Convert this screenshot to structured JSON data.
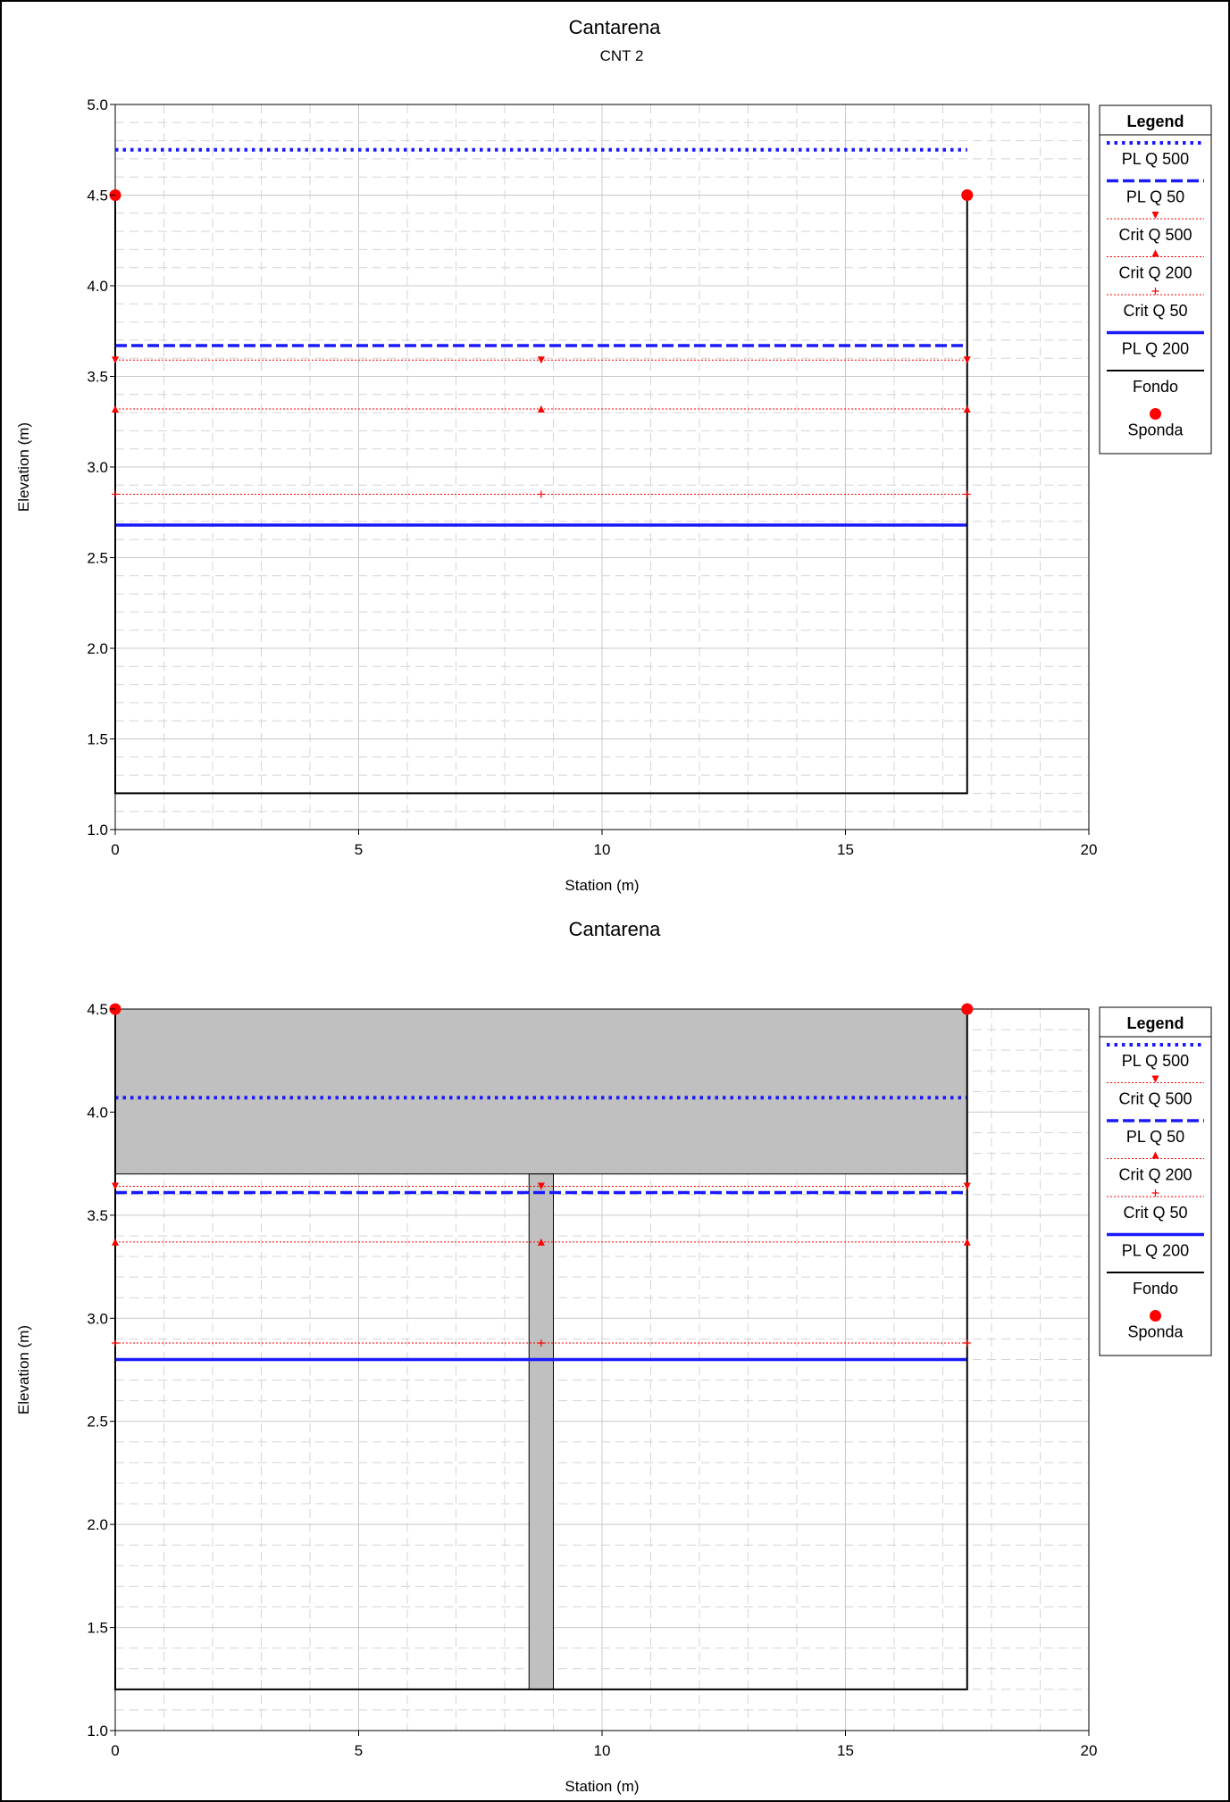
{
  "chart_data": [
    {
      "type": "line",
      "title": "Cantarena",
      "subtitle": "CNT 2",
      "xlabel": "Station (m)",
      "ylabel": "Elevation (m)",
      "xlim": [
        0,
        20
      ],
      "ylim": [
        1.0,
        5.0
      ],
      "xticks": [
        "0",
        "5",
        "10",
        "15",
        "20"
      ],
      "yticks": [
        "1.0",
        "1.5",
        "2.0",
        "2.5",
        "3.0",
        "3.5",
        "4.0",
        "4.5",
        "5.0"
      ],
      "grid": true,
      "legend_position": "right",
      "legend_title": "Legend",
      "legend": [
        "PL Q 500",
        "PL Q 50",
        "Crit Q 500",
        "Crit Q 200",
        "Crit Q 50",
        "PL Q 200",
        "Fondo",
        "Sponda"
      ],
      "series": [
        {
          "name": "PL Q 500",
          "kind": "wsel-dotted",
          "color": "#1a1aff",
          "x": [
            0,
            17.5
          ],
          "y": [
            4.75,
            4.75
          ]
        },
        {
          "name": "PL Q 50",
          "kind": "wsel-dashed",
          "color": "#1a1aff",
          "x": [
            0,
            17.5
          ],
          "y": [
            3.67,
            3.67
          ]
        },
        {
          "name": "Crit Q 500",
          "kind": "crit-down",
          "color": "#ff0000",
          "x": [
            0,
            8.75,
            17.5
          ],
          "y": [
            3.59,
            3.59,
            3.59
          ]
        },
        {
          "name": "Crit Q 200",
          "kind": "crit-up",
          "color": "#ff0000",
          "x": [
            0,
            8.75,
            17.5
          ],
          "y": [
            3.32,
            3.32,
            3.32
          ]
        },
        {
          "name": "Crit Q 50",
          "kind": "crit-plus",
          "color": "#ff0000",
          "x": [
            0,
            8.75,
            17.5
          ],
          "y": [
            2.85,
            2.85,
            2.85
          ]
        },
        {
          "name": "PL Q 200",
          "kind": "wsel-solid",
          "color": "#1a1aff",
          "x": [
            0,
            17.5
          ],
          "y": [
            2.68,
            2.68
          ]
        },
        {
          "name": "Fondo",
          "kind": "ground",
          "color": "#000000",
          "x": [
            0,
            0,
            17.5,
            17.5
          ],
          "y": [
            4.5,
            1.2,
            1.2,
            4.5
          ]
        },
        {
          "name": "Sponda",
          "kind": "bank",
          "color": "#ff0000",
          "x": [
            0,
            17.5
          ],
          "y": [
            4.5,
            4.5
          ]
        }
      ],
      "obstructions": []
    },
    {
      "type": "line",
      "title": "Cantarena",
      "subtitle": "",
      "xlabel": "Station (m)",
      "ylabel": "Elevation (m)",
      "xlim": [
        0,
        20
      ],
      "ylim": [
        1.0,
        4.5
      ],
      "xticks": [
        "0",
        "5",
        "10",
        "15",
        "20"
      ],
      "yticks": [
        "1.0",
        "1.5",
        "2.0",
        "2.5",
        "3.0",
        "3.5",
        "4.0",
        "4.5"
      ],
      "grid": true,
      "legend_position": "right",
      "legend_title": "Legend",
      "legend": [
        "PL Q 500",
        "Crit Q 500",
        "PL Q 50",
        "Crit Q 200",
        "Crit Q 50",
        "PL Q 200",
        "Fondo",
        "Sponda"
      ],
      "series": [
        {
          "name": "PL Q 500",
          "kind": "wsel-dotted",
          "color": "#1a1aff",
          "x": [
            0,
            17.5
          ],
          "y": [
            4.07,
            4.07
          ]
        },
        {
          "name": "Crit Q 500",
          "kind": "crit-down",
          "color": "#ff0000",
          "x": [
            0,
            8.75,
            17.5
          ],
          "y": [
            3.64,
            3.64,
            3.64
          ]
        },
        {
          "name": "PL Q 50",
          "kind": "wsel-dashed",
          "color": "#1a1aff",
          "x": [
            0,
            17.5
          ],
          "y": [
            3.61,
            3.61
          ]
        },
        {
          "name": "Crit Q 200",
          "kind": "crit-up",
          "color": "#ff0000",
          "x": [
            0,
            8.75,
            17.5
          ],
          "y": [
            3.37,
            3.37,
            3.37
          ]
        },
        {
          "name": "Crit Q 50",
          "kind": "crit-plus",
          "color": "#ff0000",
          "x": [
            0,
            8.75,
            17.5
          ],
          "y": [
            2.88,
            2.88,
            2.88
          ]
        },
        {
          "name": "PL Q 200",
          "kind": "wsel-solid",
          "color": "#1a1aff",
          "x": [
            0,
            17.5
          ],
          "y": [
            2.8,
            2.8
          ]
        },
        {
          "name": "Fondo",
          "kind": "ground",
          "color": "#000000",
          "x": [
            0,
            0,
            17.5,
            17.5
          ],
          "y": [
            4.5,
            1.2,
            1.2,
            4.5
          ]
        },
        {
          "name": "Sponda",
          "kind": "bank",
          "color": "#ff0000",
          "x": [
            0,
            17.5
          ],
          "y": [
            4.5,
            4.5
          ]
        }
      ],
      "obstructions": [
        {
          "name": "deck",
          "color": "#c0c0c0",
          "x0": 0,
          "x1": 17.5,
          "y0": 3.7,
          "y1": 4.5
        },
        {
          "name": "pier",
          "color": "#c0c0c0",
          "x0": 8.5,
          "x1": 9.0,
          "y0": 1.2,
          "y1": 3.7
        }
      ]
    }
  ]
}
